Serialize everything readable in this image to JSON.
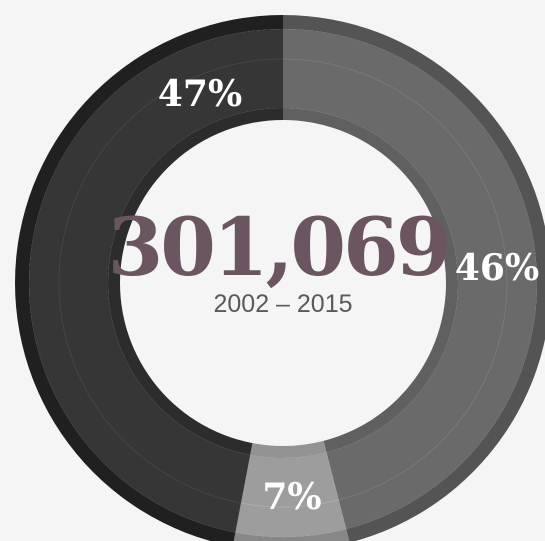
{
  "chart_data": {
    "type": "pie",
    "donut": true,
    "center_value": "301,069",
    "center_subtitle": "2002 – 2015",
    "slices": [
      {
        "label": "46%",
        "value": 46,
        "color": "#6a6a6a"
      },
      {
        "label": "7%",
        "value": 7,
        "color": "#9d9d9d"
      },
      {
        "label": "47%",
        "value": 47,
        "color": "#363636"
      }
    ],
    "colors": {
      "background": "#f5f5f5",
      "center_value": "#6b5560",
      "center_subtitle": "#5a5a5a"
    }
  }
}
